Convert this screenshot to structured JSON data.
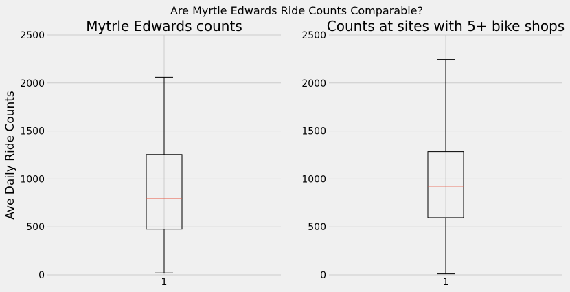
{
  "figure": {
    "suptitle": "Are Myrtle Edwards Ride Counts Comparable?",
    "background": "#f0f0f0",
    "grid_color": "#cbcbcb",
    "box_color": "#000000",
    "median_color": "#e8543f"
  },
  "chart_data": [
    {
      "type": "box",
      "title": "Mytrle Edwards counts",
      "ylabel": "Ave Daily Ride Counts",
      "xlabel": "",
      "ylim": [
        0,
        2500
      ],
      "yticks": [
        0,
        500,
        1000,
        1500,
        2000,
        2500
      ],
      "categories": [
        "1"
      ],
      "grid": true,
      "boxes": [
        {
          "whisker_low": 20,
          "q1": 475,
          "median": 795,
          "q3": 1255,
          "whisker_high": 2060
        }
      ]
    },
    {
      "type": "box",
      "title": "Counts at sites with 5+ bike shops",
      "ylabel": "",
      "xlabel": "",
      "ylim": [
        0,
        2500
      ],
      "yticks": [
        0,
        500,
        1000,
        1500,
        2000,
        2500
      ],
      "categories": [
        "1"
      ],
      "grid": true,
      "boxes": [
        {
          "whisker_low": 10,
          "q1": 595,
          "median": 925,
          "q3": 1285,
          "whisker_high": 2245
        }
      ]
    }
  ]
}
